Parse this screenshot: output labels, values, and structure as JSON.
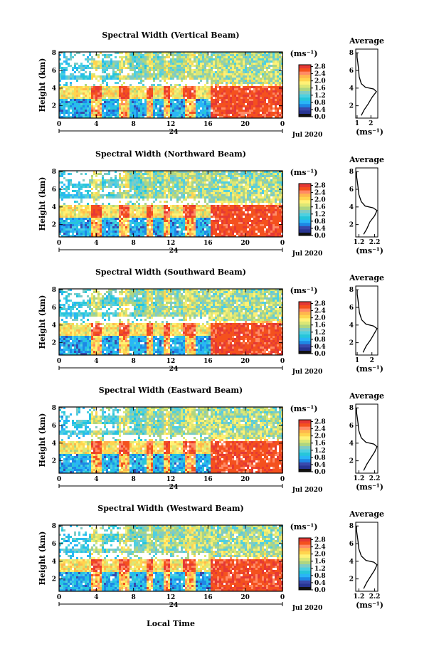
{
  "figure": {
    "xlabel": "Local Time",
    "date_label": "Jul 2020",
    "day_label": "24",
    "unit_label": "(ms⁻¹)",
    "avg_title": "Average",
    "ylabel": "Height (km)",
    "colormap": [
      "#1a237e",
      "#283593",
      "#3949ab",
      "#1e88e5",
      "#29b6f6",
      "#26c6da",
      "#4dd0e1",
      "#80cbc4",
      "#aed581",
      "#dce775",
      "#fff176",
      "#ffd54f",
      "#ffb74d",
      "#ff8a65",
      "#f4511e",
      "#e53935"
    ]
  },
  "chart_data": [
    {
      "type": "heatmap",
      "title": "Spectral Width (Vertical Beam)",
      "xlim": [
        0,
        24
      ],
      "xticks": [
        "0",
        "4",
        "8",
        "12",
        "16",
        "20",
        "0"
      ],
      "ylim": [
        0.6,
        8.1
      ],
      "yticks": [
        "2",
        "4",
        "6",
        "8"
      ],
      "colorbar_ticks": [
        "0.0",
        "0.4",
        "0.8",
        "1.2",
        "1.6",
        "2.0",
        "2.4",
        "2.8"
      ],
      "colorbar_range": [
        0.0,
        2.9
      ],
      "avg": {
        "xlim": [
          0.9,
          2.5
        ],
        "xticks": [
          "1",
          "2"
        ],
        "ylim": [
          0.6,
          8.1
        ],
        "yticks": [
          "2",
          "4",
          "6",
          "8"
        ],
        "profile": [
          [
            1.3,
            0.9
          ],
          [
            1.5,
            1.5
          ],
          [
            1.8,
            2.2
          ],
          [
            2.1,
            3.0
          ],
          [
            2.4,
            3.6
          ],
          [
            2.2,
            3.9
          ],
          [
            1.6,
            4.1
          ],
          [
            1.3,
            4.5
          ],
          [
            1.15,
            5.3
          ],
          [
            1.1,
            6.2
          ],
          [
            1.05,
            6.9
          ],
          [
            1.0,
            7.5
          ],
          [
            1.0,
            8.0
          ]
        ]
      }
    },
    {
      "type": "heatmap",
      "title": "Spectral Width (Northward Beam)",
      "xlim": [
        0,
        24
      ],
      "xticks": [
        "0",
        "4",
        "8",
        "12",
        "16",
        "20",
        "0"
      ],
      "ylim": [
        0.6,
        8.1
      ],
      "yticks": [
        "2",
        "4",
        "6",
        "8"
      ],
      "colorbar_ticks": [
        "0.0",
        "0.4",
        "0.8",
        "1.2",
        "1.6",
        "2.0",
        "2.4",
        "2.8"
      ],
      "colorbar_range": [
        0.0,
        2.9
      ],
      "avg": {
        "xlim": [
          1.0,
          2.4
        ],
        "xticks": [
          "1.2",
          "2.2"
        ],
        "ylim": [
          0.6,
          8.1
        ],
        "yticks": [
          "2",
          "4",
          "6",
          "8"
        ],
        "profile": [
          [
            1.5,
            0.9
          ],
          [
            1.7,
            1.5
          ],
          [
            1.9,
            2.3
          ],
          [
            2.2,
            3.0
          ],
          [
            2.35,
            3.6
          ],
          [
            2.1,
            3.9
          ],
          [
            1.6,
            4.1
          ],
          [
            1.35,
            4.6
          ],
          [
            1.2,
            5.4
          ],
          [
            1.15,
            6.2
          ],
          [
            1.1,
            6.9
          ],
          [
            1.05,
            7.5
          ],
          [
            1.05,
            8.0
          ]
        ]
      }
    },
    {
      "type": "heatmap",
      "title": "Spectral Width (Southward Beam)",
      "xlim": [
        0,
        24
      ],
      "xticks": [
        "0",
        "4",
        "8",
        "12",
        "16",
        "20",
        "0"
      ],
      "ylim": [
        0.6,
        8.1
      ],
      "yticks": [
        "2",
        "4",
        "6",
        "8"
      ],
      "colorbar_ticks": [
        "0.0",
        "0.4",
        "0.8",
        "1.2",
        "1.6",
        "2.0",
        "2.4",
        "2.8"
      ],
      "colorbar_range": [
        0.0,
        2.9
      ],
      "avg": {
        "xlim": [
          0.9,
          2.4
        ],
        "xticks": [
          "1",
          "2"
        ],
        "ylim": [
          0.6,
          8.1
        ],
        "yticks": [
          "2",
          "4",
          "6",
          "8"
        ],
        "profile": [
          [
            1.4,
            0.9
          ],
          [
            1.6,
            1.6
          ],
          [
            1.9,
            2.3
          ],
          [
            2.15,
            3.0
          ],
          [
            2.35,
            3.6
          ],
          [
            2.1,
            3.9
          ],
          [
            1.6,
            4.1
          ],
          [
            1.3,
            4.6
          ],
          [
            1.15,
            5.4
          ],
          [
            1.1,
            6.2
          ],
          [
            1.05,
            6.9
          ],
          [
            1.0,
            7.5
          ],
          [
            1.0,
            8.0
          ]
        ]
      }
    },
    {
      "type": "heatmap",
      "title": "Spectral Width (Eastward Beam)",
      "xlim": [
        0,
        24
      ],
      "xticks": [
        "0",
        "4",
        "8",
        "12",
        "16",
        "20",
        "0"
      ],
      "ylim": [
        0.6,
        8.1
      ],
      "yticks": [
        "2",
        "4",
        "6",
        "8"
      ],
      "colorbar_ticks": [
        "0.0",
        "0.4",
        "0.8",
        "1.2",
        "1.6",
        "2.0",
        "2.4",
        "2.8"
      ],
      "colorbar_range": [
        0.0,
        2.9
      ],
      "avg": {
        "xlim": [
          1.0,
          2.4
        ],
        "xticks": [
          "1.2",
          "2.2"
        ],
        "ylim": [
          0.6,
          8.1
        ],
        "yticks": [
          "2",
          "4",
          "6",
          "8"
        ],
        "profile": [
          [
            1.5,
            0.9
          ],
          [
            1.7,
            1.6
          ],
          [
            1.95,
            2.3
          ],
          [
            2.2,
            3.0
          ],
          [
            2.35,
            3.6
          ],
          [
            2.15,
            3.9
          ],
          [
            1.65,
            4.1
          ],
          [
            1.35,
            4.6
          ],
          [
            1.2,
            5.4
          ],
          [
            1.15,
            6.2
          ],
          [
            1.1,
            6.9
          ],
          [
            1.05,
            7.5
          ],
          [
            1.05,
            8.0
          ]
        ]
      }
    },
    {
      "type": "heatmap",
      "title": "Spectral Width (Westward Beam)",
      "xlim": [
        0,
        24
      ],
      "xticks": [
        "0",
        "4",
        "8",
        "12",
        "16",
        "20",
        "0"
      ],
      "ylim": [
        0.6,
        8.1
      ],
      "yticks": [
        "2",
        "4",
        "6",
        "8"
      ],
      "colorbar_ticks": [
        "0.0",
        "0.4",
        "0.8",
        "1.2",
        "1.6",
        "2.0",
        "2.4",
        "2.8"
      ],
      "colorbar_range": [
        0.0,
        2.9
      ],
      "avg": {
        "xlim": [
          1.0,
          2.4
        ],
        "xticks": [
          "1.2",
          "2.2"
        ],
        "ylim": [
          0.6,
          8.1
        ],
        "yticks": [
          "2",
          "4",
          "6",
          "8"
        ],
        "profile": [
          [
            1.5,
            0.9
          ],
          [
            1.7,
            1.6
          ],
          [
            1.95,
            2.3
          ],
          [
            2.2,
            3.0
          ],
          [
            2.35,
            3.6
          ],
          [
            2.15,
            3.9
          ],
          [
            1.65,
            4.1
          ],
          [
            1.35,
            4.6
          ],
          [
            1.2,
            5.4
          ],
          [
            1.15,
            6.2
          ],
          [
            1.1,
            6.9
          ],
          [
            1.05,
            7.5
          ],
          [
            1.05,
            8.0
          ]
        ]
      }
    }
  ]
}
